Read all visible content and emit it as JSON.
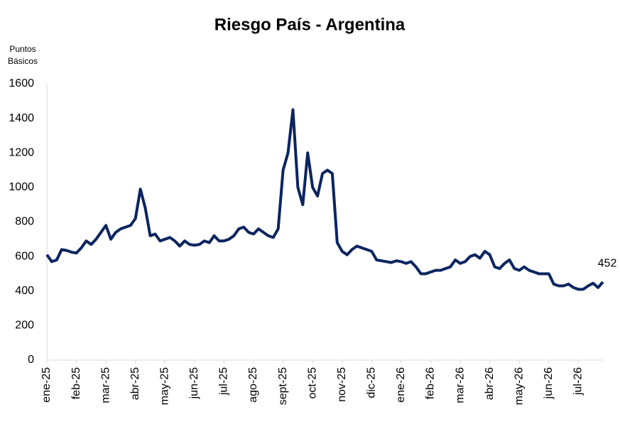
{
  "chart_data": {
    "type": "line",
    "title": "Riesgo País - Argentina",
    "ylabel": [
      "Puntos",
      "Básicos"
    ],
    "color": "#0b2560",
    "ylim": [
      0,
      1600
    ],
    "yticks": [
      0,
      200,
      400,
      600,
      800,
      1000,
      1200,
      1400,
      1600
    ],
    "grid": false,
    "categories": [
      "ene-25",
      null,
      null,
      null,
      null,
      null,
      "feb-25",
      null,
      null,
      null,
      null,
      null,
      "mar-25",
      null,
      null,
      null,
      null,
      null,
      "abr-25",
      null,
      null,
      null,
      null,
      null,
      "may-25",
      null,
      null,
      null,
      null,
      null,
      "jun-25",
      null,
      null,
      null,
      null,
      null,
      "jul-25",
      null,
      null,
      null,
      null,
      null,
      "ago-25",
      null,
      null,
      null,
      null,
      null,
      "sept-25",
      null,
      null,
      null,
      null,
      null,
      "oct-25",
      null,
      null,
      null,
      null,
      null,
      "nov-25",
      null,
      null,
      null,
      null,
      null,
      "dic-25",
      null,
      null,
      null,
      null,
      null,
      "ene-26",
      null,
      null,
      null,
      null,
      null,
      "feb-26",
      null,
      null,
      null,
      null,
      null,
      "mar-26",
      null,
      null,
      null,
      null,
      null,
      "abr-26",
      null,
      null,
      null,
      null,
      null,
      "may-26",
      null,
      null,
      null,
      null,
      null,
      "jun-26",
      null,
      null,
      null,
      null,
      null,
      "jul-26",
      null,
      null,
      null,
      null,
      null
    ],
    "values": [
      610,
      570,
      580,
      640,
      635,
      625,
      620,
      650,
      690,
      670,
      700,
      740,
      780,
      700,
      740,
      760,
      770,
      780,
      820,
      990,
      880,
      720,
      730,
      690,
      700,
      710,
      690,
      660,
      690,
      670,
      665,
      670,
      690,
      680,
      720,
      690,
      690,
      700,
      720,
      760,
      770,
      740,
      730,
      760,
      740,
      720,
      710,
      760,
      1100,
      1200,
      1450,
      1000,
      900,
      1200,
      1000,
      950,
      1080,
      1100,
      1080,
      680,
      630,
      610,
      640,
      660,
      650,
      640,
      630,
      580,
      575,
      570,
      565,
      575,
      570,
      560,
      570,
      540,
      500,
      500,
      510,
      520,
      520,
      530,
      540,
      580,
      560,
      570,
      600,
      610,
      590,
      630,
      610,
      540,
      530,
      560,
      580,
      530,
      520,
      540,
      520,
      510,
      500,
      500,
      500,
      440,
      430,
      430,
      440,
      420,
      410,
      410,
      430,
      445,
      420,
      452
    ]
  }
}
